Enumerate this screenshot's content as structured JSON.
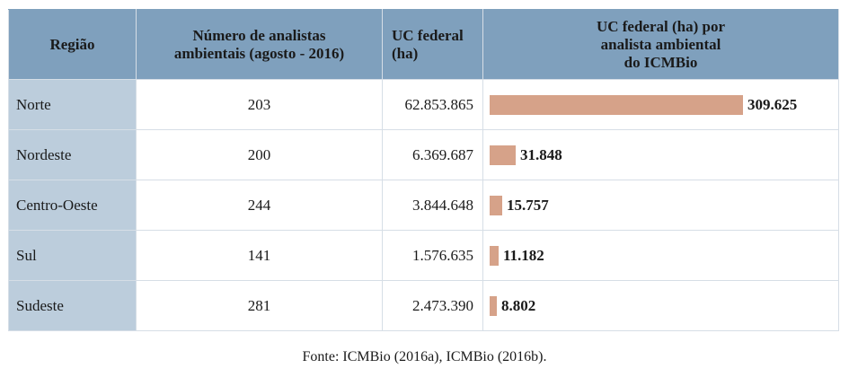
{
  "table": {
    "headers": {
      "region": "Região",
      "analysts_line1": "Número de analistas",
      "analysts_line2": "ambientais (agosto - 2016)",
      "uc_line1": "UC federal",
      "uc_line2": "(ha)",
      "ratio_line1": "UC federal (ha) por",
      "ratio_line2": "analista ambiental",
      "ratio_line3": "do ICMBio"
    },
    "rows": [
      {
        "region": "Norte",
        "analysts": "203",
        "uc": "62.853.865",
        "ratio_label": "309.625",
        "ratio_value": 309625
      },
      {
        "region": "Nordeste",
        "analysts": "200",
        "uc": "6.369.687",
        "ratio_label": "31.848",
        "ratio_value": 31848
      },
      {
        "region": "Centro-Oeste",
        "analysts": "244",
        "uc": "3.844.648",
        "ratio_label": "15.757",
        "ratio_value": 15757
      },
      {
        "region": "Sul",
        "analysts": "141",
        "uc": "1.576.635",
        "ratio_label": "11.182",
        "ratio_value": 11182
      },
      {
        "region": "Sudeste",
        "analysts": "281",
        "uc": "2.473.390",
        "ratio_label": "8.802",
        "ratio_value": 8802
      }
    ]
  },
  "colors": {
    "header_bg": "#7fa0bd",
    "region_bg": "#bccddc",
    "bar": "#d6a289"
  },
  "source": "Fonte: ICMBio (2016a), ICMBio (2016b)."
}
